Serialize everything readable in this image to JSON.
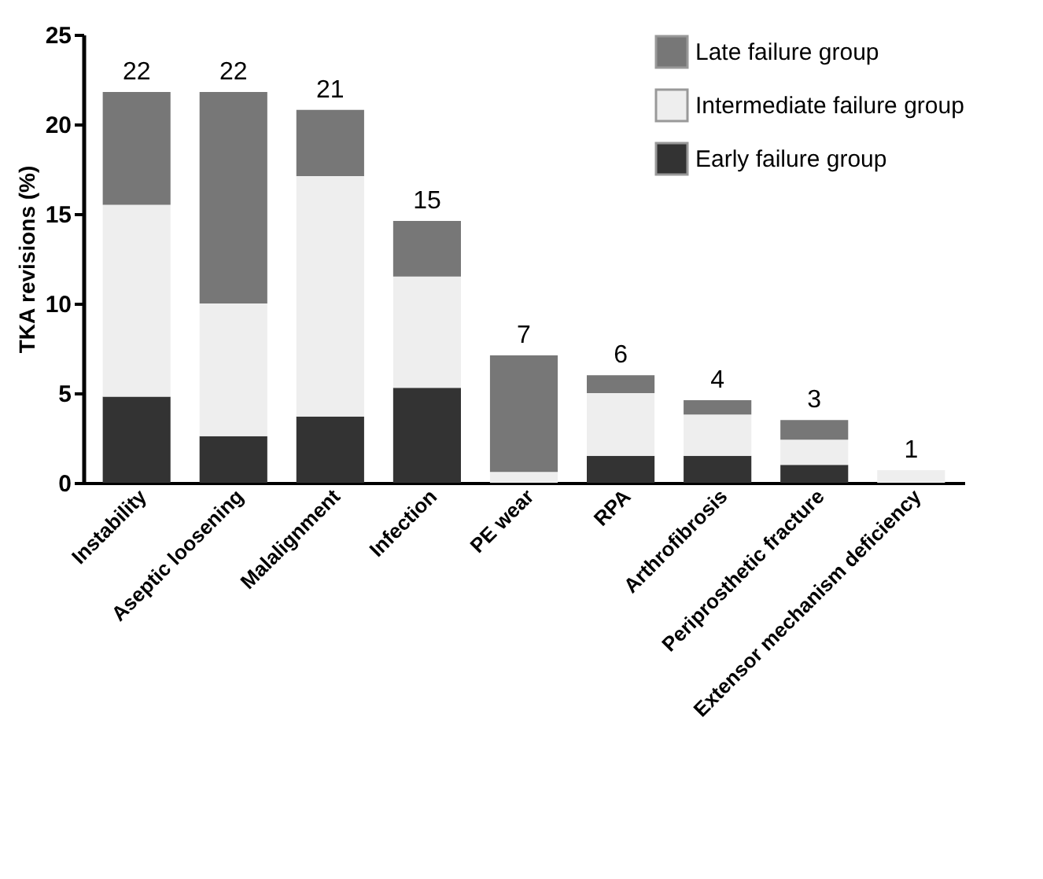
{
  "chart_data": {
    "type": "bar",
    "stacked": true,
    "ylabel": "TKA revisions (%)",
    "categories": [
      "Instability",
      "Aseptic loosening",
      "Malalignment",
      "Infection",
      "PE wear",
      "RPA",
      "Arthrofibrosis",
      "Periprosthetic fracture",
      "Extensor mechanism deficiency"
    ],
    "series": [
      {
        "name": "Early failure group",
        "color": "#333333",
        "values": [
          4.8,
          2.6,
          3.7,
          5.3,
          0,
          1.5,
          1.5,
          1.0,
          0
        ]
      },
      {
        "name": "Intermediate failure group",
        "color": "#eeeeee",
        "values": [
          10.7,
          7.4,
          13.4,
          6.2,
          0.6,
          3.5,
          2.3,
          1.4,
          0.7
        ]
      },
      {
        "name": "Late failure group",
        "color": "#777777",
        "values": [
          6.3,
          11.8,
          3.7,
          3.1,
          6.5,
          1.0,
          0.8,
          1.1,
          0
        ]
      }
    ],
    "totals": [
      "22",
      "22",
      "21",
      "15",
      "7",
      "6",
      "4",
      "3",
      "1"
    ],
    "ylim": [
      0,
      25
    ],
    "yticks": [
      0,
      5,
      10,
      15,
      20,
      25
    ],
    "grid": false,
    "legend": "top right"
  }
}
